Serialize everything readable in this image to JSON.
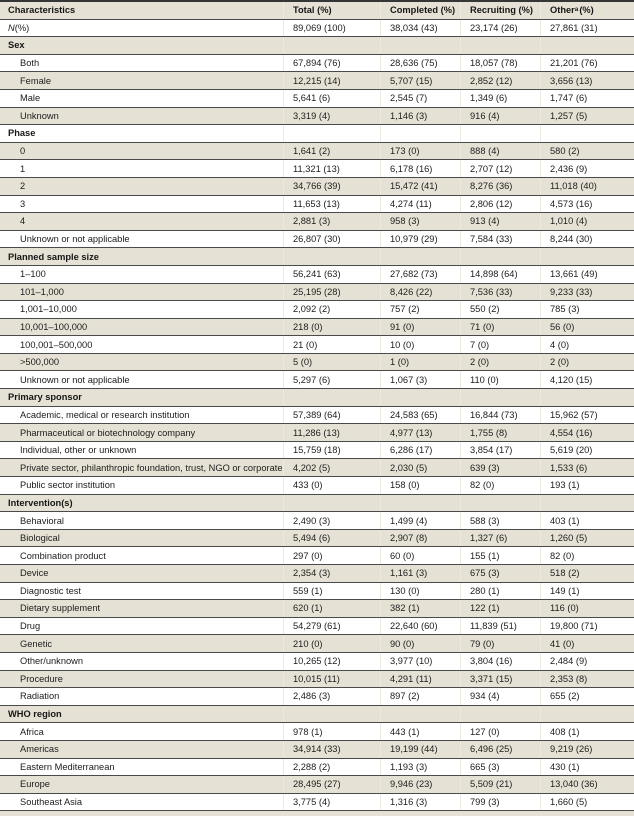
{
  "colors": {
    "stripe_beige": "#e5e2d5",
    "row_border": "#4a4a4a",
    "column_separator": "#edebe1",
    "text": "#1c1c1c"
  },
  "header": {
    "characteristics": "Characteristics",
    "total": "Total (%)",
    "completed": "Completed (%)",
    "recruiting": "Recruiting (%)",
    "other_base": "Other",
    "other_sup": "a",
    "other_rest": " (%)"
  },
  "rows": [
    {
      "label_italic": "N",
      "label": " (%)",
      "flush": true,
      "values": [
        "89,069 (100)",
        "38,034 (43)",
        "23,174 (26)",
        "27,861 (31)"
      ]
    },
    {
      "section": "Sex"
    },
    {
      "label": "Both",
      "values": [
        "67,894 (76)",
        "28,636 (75)",
        "18,057 (78)",
        "21,201 (76)"
      ]
    },
    {
      "label": "Female",
      "values": [
        "12,215 (14)",
        "5,707 (15)",
        "2,852 (12)",
        "3,656 (13)"
      ]
    },
    {
      "label": "Male",
      "values": [
        "5,641 (6)",
        "2,545 (7)",
        "1,349 (6)",
        "1,747 (6)"
      ]
    },
    {
      "label": "Unknown",
      "values": [
        "3,319 (4)",
        "1,146 (3)",
        "916 (4)",
        "1,257 (5)"
      ]
    },
    {
      "section": "Phase"
    },
    {
      "label": "0",
      "values": [
        "1,641 (2)",
        "173 (0)",
        "888 (4)",
        "580 (2)"
      ]
    },
    {
      "label": "1",
      "values": [
        "11,321 (13)",
        "6,178 (16)",
        "2,707 (12)",
        "2,436 (9)"
      ]
    },
    {
      "label": "2",
      "values": [
        "34,766 (39)",
        "15,472 (41)",
        "8,276 (36)",
        "11,018 (40)"
      ]
    },
    {
      "label": "3",
      "values": [
        "11,653 (13)",
        "4,274 (11)",
        "2,806 (12)",
        "4,573 (16)"
      ]
    },
    {
      "label": "4",
      "values": [
        "2,881 (3)",
        "958 (3)",
        "913 (4)",
        "1,010 (4)"
      ]
    },
    {
      "label": "Unknown or not applicable",
      "values": [
        "26,807 (30)",
        "10,979 (29)",
        "7,584 (33)",
        "8,244 (30)"
      ]
    },
    {
      "section": "Planned sample size"
    },
    {
      "label": "1–100",
      "values": [
        "56,241 (63)",
        "27,682 (73)",
        "14,898 (64)",
        "13,661 (49)"
      ]
    },
    {
      "label": "101–1,000",
      "values": [
        "25,195 (28)",
        "8,426 (22)",
        "7,536 (33)",
        "9,233 (33)"
      ]
    },
    {
      "label": "1,001–10,000",
      "values": [
        "2,092 (2)",
        "757 (2)",
        "550 (2)",
        "785 (3)"
      ]
    },
    {
      "label": "10,001–100,000",
      "values": [
        "218 (0)",
        "91 (0)",
        "71 (0)",
        "56 (0)"
      ]
    },
    {
      "label": "100,001–500,000",
      "values": [
        "21 (0)",
        "10 (0)",
        "7 (0)",
        "4 (0)"
      ]
    },
    {
      "label": ">500,000",
      "values": [
        "5 (0)",
        "1 (0)",
        "2 (0)",
        "2 (0)"
      ]
    },
    {
      "label": "Unknown or not applicable",
      "values": [
        "5,297 (6)",
        "1,067 (3)",
        "110 (0)",
        "4,120 (15)"
      ]
    },
    {
      "section": "Primary sponsor"
    },
    {
      "label": "Academic, medical or research institution",
      "values": [
        "57,389 (64)",
        "24,583 (65)",
        "16,844 (73)",
        "15,962 (57)"
      ]
    },
    {
      "label": "Pharmaceutical or biotechnology company",
      "values": [
        "11,286 (13)",
        "4,977 (13)",
        "1,755 (8)",
        "4,554 (16)"
      ]
    },
    {
      "label": "Individual, other or unknown",
      "values": [
        "15,759 (18)",
        "6,286 (17)",
        "3,854 (17)",
        "5,619 (20)"
      ]
    },
    {
      "label": "Private sector, philanthropic foundation, trust, NGO or corporate donor",
      "values": [
        "4,202 (5)",
        "2,030 (5)",
        "639 (3)",
        "1,533 (6)"
      ]
    },
    {
      "label": "Public sector institution",
      "values": [
        "433 (0)",
        "158 (0)",
        "82 (0)",
        "193 (1)"
      ]
    },
    {
      "section": "Intervention(s)"
    },
    {
      "label": "Behavioral",
      "values": [
        "2,490 (3)",
        "1,499 (4)",
        "588 (3)",
        "403 (1)"
      ]
    },
    {
      "label": "Biological",
      "values": [
        "5,494 (6)",
        "2,907 (8)",
        "1,327 (6)",
        "1,260 (5)"
      ]
    },
    {
      "label": "Combination product",
      "values": [
        "297 (0)",
        "60 (0)",
        "155 (1)",
        "82 (0)"
      ]
    },
    {
      "label": "Device",
      "values": [
        "2,354 (3)",
        "1,161 (3)",
        "675 (3)",
        "518 (2)"
      ]
    },
    {
      "label": "Diagnostic test",
      "values": [
        "559 (1)",
        "130 (0)",
        "280 (1)",
        "149 (1)"
      ]
    },
    {
      "label": "Dietary supplement",
      "values": [
        "620 (1)",
        "382 (1)",
        "122 (1)",
        "116 (0)"
      ]
    },
    {
      "label": "Drug",
      "values": [
        "54,279 (61)",
        "22,640 (60)",
        "11,839 (51)",
        "19,800 (71)"
      ]
    },
    {
      "label": "Genetic",
      "values": [
        "210 (0)",
        "90 (0)",
        "79 (0)",
        "41 (0)"
      ]
    },
    {
      "label": "Other/unknown",
      "values": [
        "10,265 (12)",
        "3,977 (10)",
        "3,804 (16)",
        "2,484 (9)"
      ]
    },
    {
      "label": "Procedure",
      "values": [
        "10,015 (11)",
        "4,291 (11)",
        "3,371 (15)",
        "2,353 (8)"
      ]
    },
    {
      "label": "Radiation",
      "values": [
        "2,486 (3)",
        "897 (2)",
        "934 (4)",
        "655 (2)"
      ]
    },
    {
      "section": "WHO region"
    },
    {
      "label": "Africa",
      "values": [
        "978 (1)",
        "443 (1)",
        "127 (0)",
        "408 (1)"
      ]
    },
    {
      "label": "Americas",
      "values": [
        "34,914 (33)",
        "19,199 (44)",
        "6,496 (25)",
        "9,219 (26)"
      ]
    },
    {
      "label": "Eastern Mediterranean",
      "values": [
        "2,288 (2)",
        "1,193 (3)",
        "665 (3)",
        "430 (1)"
      ]
    },
    {
      "label": "Europe",
      "values": [
        "28,495 (27)",
        "9,946 (23)",
        "5,509 (21)",
        "13,040 (36)"
      ]
    },
    {
      "label": "Southeast Asia",
      "values": [
        "3,775 (4)",
        "1,316 (3)",
        "799 (3)",
        "1,660 (5)"
      ]
    }
  ]
}
